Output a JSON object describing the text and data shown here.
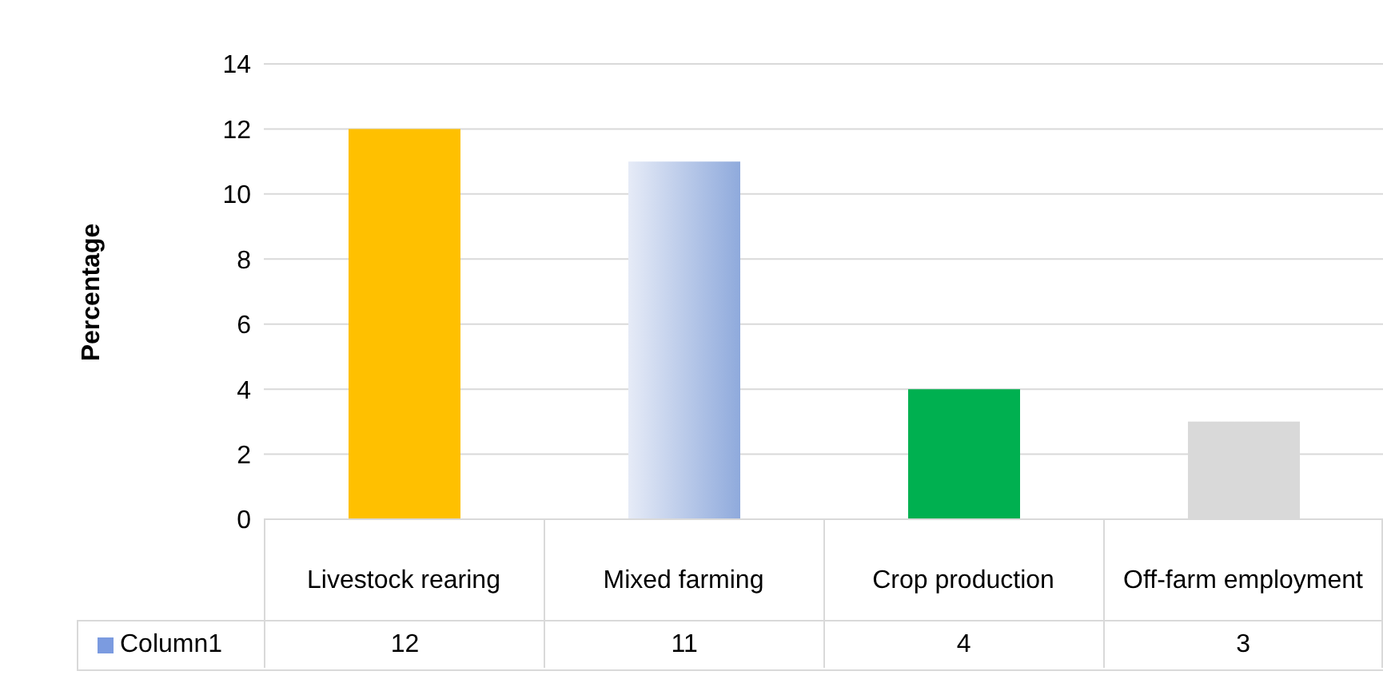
{
  "chart_data": {
    "type": "bar",
    "ylabel": "Percentage",
    "categories": [
      "Livestock rearing",
      "Mixed farming",
      "Crop production",
      "Off-farm employment"
    ],
    "series": [
      {
        "name": "Column1",
        "color": "#7b9be0",
        "colors": [
          "#ffc000",
          "#8faadc",
          "#00b050",
          "#d9d9d9"
        ],
        "values": [
          12,
          11,
          4,
          3
        ]
      }
    ],
    "ylim": [
      0,
      14
    ],
    "yticks": [
      0,
      2,
      4,
      6,
      8,
      10,
      12,
      14
    ],
    "grid": "y",
    "data_labels": true,
    "legend": "bottom"
  }
}
